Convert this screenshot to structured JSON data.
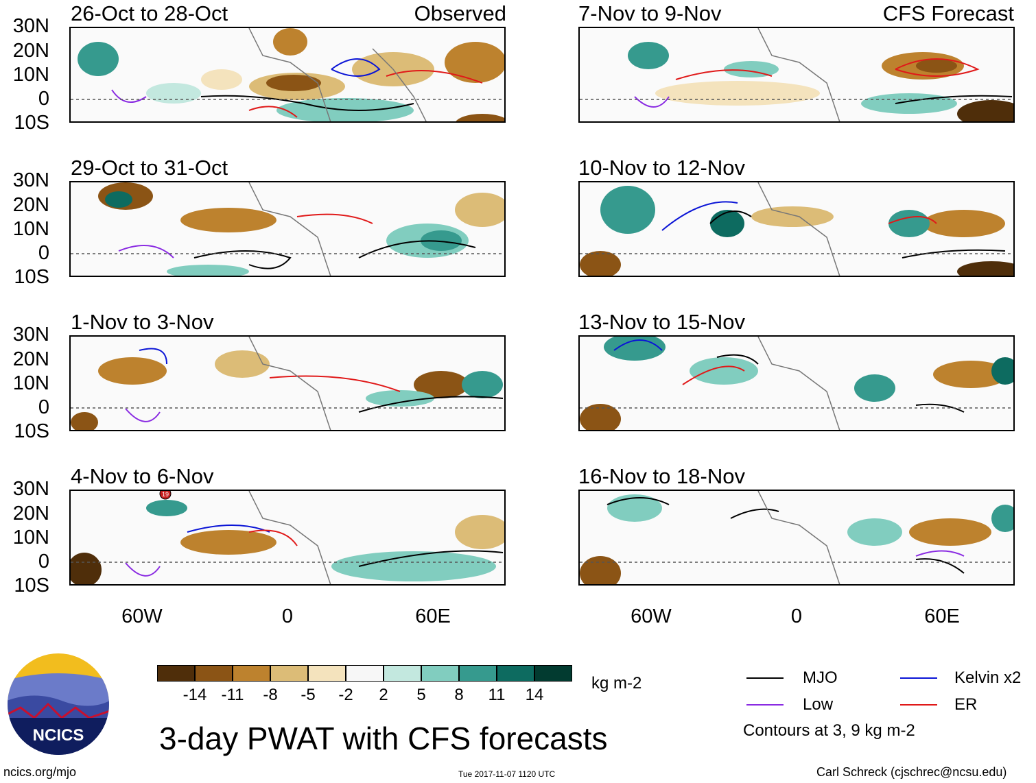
{
  "panels_left": [
    {
      "title": "26-Oct to 28-Oct",
      "tag": "Observed"
    },
    {
      "title": "29-Oct to 31-Oct",
      "tag": ""
    },
    {
      "title": "1-Nov to 3-Nov",
      "tag": ""
    },
    {
      "title": "4-Nov to 6-Nov",
      "tag": ""
    }
  ],
  "panels_right": [
    {
      "title": "7-Nov to 9-Nov",
      "tag": "CFS Forecast"
    },
    {
      "title": "10-Nov to 12-Nov",
      "tag": ""
    },
    {
      "title": "13-Nov to 15-Nov",
      "tag": ""
    },
    {
      "title": "16-Nov to 18-Nov",
      "tag": ""
    }
  ],
  "lat_labels": [
    "30N",
    "20N",
    "10N",
    "0",
    "10S"
  ],
  "lon_labels": [
    "60W",
    "0",
    "60E"
  ],
  "colorbar": {
    "ticks": [
      "-14",
      "-11",
      "-8",
      "-5",
      "-2",
      "2",
      "5",
      "8",
      "11",
      "14"
    ],
    "colors": [
      "#4f2e0a",
      "#8b5415",
      "#bd822e",
      "#dcbc77",
      "#f4e3bd",
      "#f7f7f7",
      "#c3e8df",
      "#81cdbf",
      "#369a8e",
      "#0d6b60",
      "#023b30"
    ],
    "units": "kg m-2"
  },
  "legend": {
    "items": [
      {
        "label": "MJO",
        "color": "#000000"
      },
      {
        "label": "Kelvin x2",
        "color": "#0a14d6"
      },
      {
        "label": "Low",
        "color": "#8a2be2"
      },
      {
        "label": "ER",
        "color": "#e01919"
      }
    ],
    "note": "Contours at 3, 9 kg m-2"
  },
  "logo": {
    "text": "NCICS"
  },
  "main_title": "3-day PWAT with CFS forecasts",
  "footer": {
    "left": "ncics.org/mjo",
    "center": "Tue 2017-11-07 1120 UTC",
    "right": "Carl Schreck (cjschrec@ncsu.edu)"
  },
  "storm_markers": [
    "19"
  ]
}
